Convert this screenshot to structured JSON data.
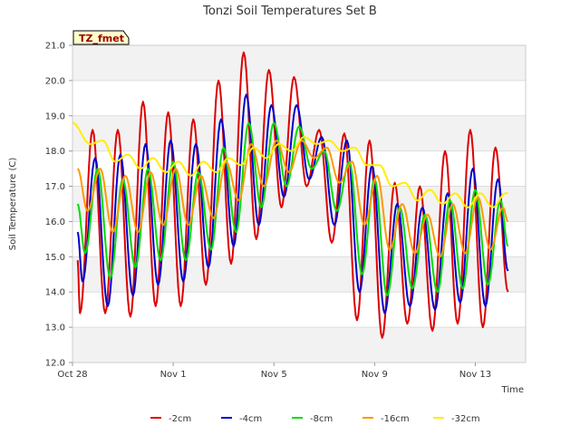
{
  "chart_data": {
    "type": "line",
    "title": "Tonzi Soil Temperatures Set B",
    "xlabel": "Time",
    "ylabel": "Soil Temperature (C)",
    "badge": "TZ_fmet",
    "ylim": [
      12.0,
      21.0
    ],
    "xlim": [
      0,
      18
    ],
    "x_unit": "days since Oct 28",
    "y_ticks": [
      12.0,
      13.0,
      14.0,
      15.0,
      16.0,
      17.0,
      18.0,
      19.0,
      20.0,
      21.0
    ],
    "x_ticks": [
      {
        "value": 0,
        "label": "Oct 28"
      },
      {
        "value": 4,
        "label": "Nov 1"
      },
      {
        "value": 8,
        "label": "Nov 5"
      },
      {
        "value": 12,
        "label": "Nov 9"
      },
      {
        "value": 16,
        "label": "Nov 13"
      }
    ],
    "grid": true,
    "legend_position": "bottom",
    "series": [
      {
        "name": "-2cm",
        "color": "#dd0000",
        "peaks": [
          [
            0.8,
            18.6
          ],
          [
            1.8,
            18.6
          ],
          [
            2.8,
            19.4
          ],
          [
            3.8,
            19.1
          ],
          [
            4.8,
            18.9
          ],
          [
            5.8,
            20.0
          ],
          [
            6.8,
            20.8
          ],
          [
            7.8,
            20.3
          ],
          [
            8.8,
            20.1
          ],
          [
            9.8,
            18.6
          ],
          [
            10.8,
            18.5
          ],
          [
            11.8,
            18.3
          ],
          [
            12.8,
            17.1
          ],
          [
            13.8,
            17.0
          ],
          [
            14.8,
            18.0
          ],
          [
            15.8,
            18.6
          ],
          [
            16.8,
            18.1
          ]
        ],
        "troughs": [
          [
            0.3,
            13.4
          ],
          [
            1.3,
            13.4
          ],
          [
            2.3,
            13.3
          ],
          [
            3.3,
            13.6
          ],
          [
            4.3,
            13.6
          ],
          [
            5.3,
            14.2
          ],
          [
            6.3,
            14.8
          ],
          [
            7.3,
            15.5
          ],
          [
            8.3,
            16.4
          ],
          [
            9.3,
            17.0
          ],
          [
            10.3,
            15.4
          ],
          [
            11.3,
            13.2
          ],
          [
            12.3,
            12.7
          ],
          [
            13.3,
            13.1
          ],
          [
            14.3,
            12.9
          ],
          [
            15.3,
            13.1
          ],
          [
            16.3,
            13.0
          ]
        ],
        "start": 14.9,
        "end": 14.0
      },
      {
        "name": "-4cm",
        "color": "#0000cc",
        "peaks": [
          [
            0.9,
            17.8
          ],
          [
            1.9,
            17.9
          ],
          [
            2.9,
            18.2
          ],
          [
            3.9,
            18.3
          ],
          [
            4.9,
            18.2
          ],
          [
            5.9,
            18.9
          ],
          [
            6.9,
            19.6
          ],
          [
            7.9,
            19.3
          ],
          [
            8.9,
            19.3
          ],
          [
            9.9,
            18.4
          ],
          [
            10.9,
            18.3
          ],
          [
            11.9,
            17.6
          ],
          [
            12.9,
            16.5
          ],
          [
            13.9,
            16.4
          ],
          [
            14.9,
            16.8
          ],
          [
            15.9,
            17.5
          ],
          [
            16.9,
            17.2
          ]
        ],
        "troughs": [
          [
            0.4,
            14.3
          ],
          [
            1.4,
            13.6
          ],
          [
            2.4,
            13.9
          ],
          [
            3.4,
            14.2
          ],
          [
            4.4,
            14.3
          ],
          [
            5.4,
            14.7
          ],
          [
            6.4,
            15.3
          ],
          [
            7.4,
            15.9
          ],
          [
            8.4,
            16.7
          ],
          [
            9.4,
            17.2
          ],
          [
            10.4,
            15.9
          ],
          [
            11.4,
            14.0
          ],
          [
            12.4,
            13.4
          ],
          [
            13.4,
            13.6
          ],
          [
            14.4,
            13.5
          ],
          [
            15.4,
            13.7
          ],
          [
            16.4,
            13.6
          ]
        ],
        "start": 15.7,
        "end": 14.6
      },
      {
        "name": "-8cm",
        "color": "#00dd00",
        "peaks": [
          [
            1.0,
            17.5
          ],
          [
            2.0,
            17.2
          ],
          [
            3.0,
            17.5
          ],
          [
            4.0,
            17.7
          ],
          [
            5.0,
            17.4
          ],
          [
            6.0,
            18.1
          ],
          [
            7.0,
            18.8
          ],
          [
            8.0,
            18.8
          ],
          [
            9.0,
            18.7
          ],
          [
            10.0,
            18.0
          ],
          [
            11.0,
            17.7
          ],
          [
            12.0,
            17.2
          ],
          [
            13.0,
            16.4
          ],
          [
            14.0,
            16.2
          ],
          [
            15.0,
            16.6
          ],
          [
            16.0,
            16.9
          ],
          [
            17.0,
            16.6
          ]
        ],
        "troughs": [
          [
            0.5,
            15.1
          ],
          [
            1.5,
            14.4
          ],
          [
            2.5,
            14.7
          ],
          [
            3.5,
            14.9
          ],
          [
            4.5,
            14.9
          ],
          [
            5.5,
            15.2
          ],
          [
            6.5,
            15.7
          ],
          [
            7.5,
            16.4
          ],
          [
            8.5,
            17.0
          ],
          [
            9.5,
            17.5
          ],
          [
            10.5,
            16.3
          ],
          [
            11.5,
            14.5
          ],
          [
            12.5,
            13.9
          ],
          [
            13.5,
            14.1
          ],
          [
            14.5,
            14.0
          ],
          [
            15.5,
            14.1
          ],
          [
            16.5,
            14.2
          ]
        ],
        "start": 16.5,
        "end": 15.3
      },
      {
        "name": "-16cm",
        "color": "#ff9900",
        "peaks": [
          [
            1.1,
            17.5
          ],
          [
            2.1,
            17.3
          ],
          [
            3.1,
            17.4
          ],
          [
            4.1,
            17.5
          ],
          [
            5.1,
            17.3
          ],
          [
            6.1,
            17.7
          ],
          [
            7.1,
            18.2
          ],
          [
            8.1,
            18.3
          ],
          [
            9.1,
            18.3
          ],
          [
            10.1,
            18.1
          ],
          [
            11.1,
            17.7
          ],
          [
            12.1,
            17.3
          ],
          [
            13.1,
            16.5
          ],
          [
            14.1,
            16.2
          ],
          [
            15.1,
            16.5
          ],
          [
            16.1,
            16.7
          ],
          [
            17.1,
            16.4
          ]
        ],
        "troughs": [
          [
            0.6,
            16.3
          ],
          [
            1.6,
            15.7
          ],
          [
            2.6,
            15.7
          ],
          [
            3.6,
            15.9
          ],
          [
            4.6,
            15.9
          ],
          [
            5.6,
            16.1
          ],
          [
            6.6,
            16.6
          ],
          [
            7.6,
            17.0
          ],
          [
            8.6,
            17.4
          ],
          [
            9.6,
            17.8
          ],
          [
            10.6,
            17.1
          ],
          [
            11.6,
            15.9
          ],
          [
            12.6,
            15.2
          ],
          [
            13.6,
            15.1
          ],
          [
            14.6,
            15.0
          ],
          [
            15.6,
            15.1
          ],
          [
            16.6,
            15.2
          ]
        ],
        "start": 17.5,
        "end": 16.0
      },
      {
        "name": "-32cm",
        "color": "#ffee00",
        "peaks": [
          [
            0.0,
            18.8
          ],
          [
            1.2,
            18.3
          ],
          [
            2.2,
            17.9
          ],
          [
            3.2,
            17.8
          ],
          [
            4.2,
            17.7
          ],
          [
            5.2,
            17.7
          ],
          [
            6.2,
            17.8
          ],
          [
            7.2,
            18.1
          ],
          [
            8.2,
            18.2
          ],
          [
            9.2,
            18.4
          ],
          [
            10.2,
            18.3
          ],
          [
            11.2,
            18.1
          ],
          [
            12.2,
            17.6
          ],
          [
            13.2,
            17.1
          ],
          [
            14.2,
            16.9
          ],
          [
            15.2,
            16.8
          ],
          [
            16.2,
            16.8
          ],
          [
            17.2,
            16.8
          ]
        ],
        "troughs": [
          [
            0.7,
            18.2
          ],
          [
            1.7,
            17.7
          ],
          [
            2.7,
            17.5
          ],
          [
            3.7,
            17.4
          ],
          [
            4.7,
            17.3
          ],
          [
            5.7,
            17.4
          ],
          [
            6.7,
            17.6
          ],
          [
            7.7,
            17.8
          ],
          [
            8.7,
            18.0
          ],
          [
            9.7,
            18.2
          ],
          [
            10.7,
            18.0
          ],
          [
            11.7,
            17.6
          ],
          [
            12.7,
            17.0
          ],
          [
            13.7,
            16.6
          ],
          [
            14.7,
            16.5
          ],
          [
            15.7,
            16.4
          ],
          [
            16.7,
            16.4
          ]
        ],
        "start": 18.8,
        "end": 16.8
      }
    ]
  }
}
